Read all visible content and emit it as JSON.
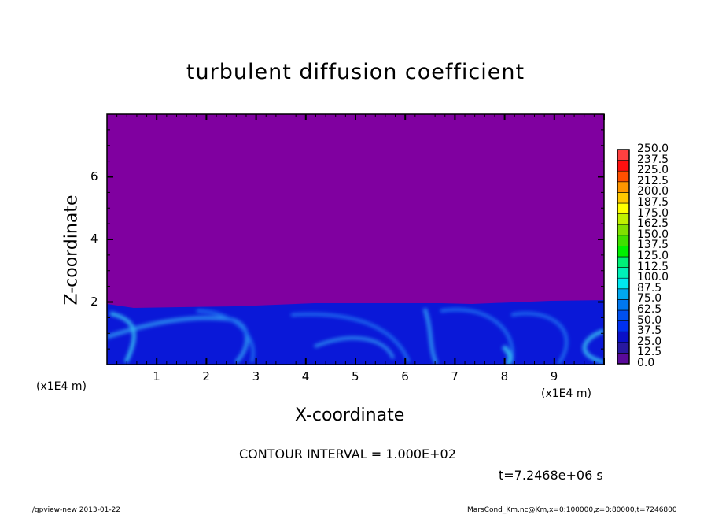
{
  "chart_data": {
    "type": "heatmap",
    "title": "turbulent diffusion coefficient",
    "xlabel": "X-coordinate",
    "ylabel": "Z-coordinate",
    "x_unit_label": "(x1E4 m)",
    "xlim": [
      0,
      10
    ],
    "ylim": [
      0,
      8
    ],
    "x_ticks": [
      "1",
      "2",
      "3",
      "4",
      "5",
      "6",
      "7",
      "8",
      "9"
    ],
    "y_ticks": [
      "2",
      "4",
      "6"
    ],
    "contour_interval_text": "CONTOUR INTERVAL = 1.000E+02",
    "time_text": "t=7.2468e+06 s",
    "colorbar": {
      "levels": [
        "0.0",
        "12.5",
        "25.0",
        "37.5",
        "50.0",
        "62.5",
        "75.0",
        "87.5",
        "100.0",
        "112.5",
        "125.0",
        "137.5",
        "150.0",
        "162.5",
        "175.0",
        "187.5",
        "200.0",
        "212.5",
        "225.0",
        "237.5",
        "250.0"
      ],
      "colors": [
        "#5a0a9a",
        "#2818a0",
        "#0a10c8",
        "#0030f0",
        "#0050f0",
        "#0078f0",
        "#00a8f0",
        "#00e8f0",
        "#00f0b8",
        "#00f078",
        "#00f000",
        "#40e000",
        "#80e000",
        "#c0f000",
        "#ffff00",
        "#ffc800",
        "#ff9600",
        "#ff5000",
        "#ff1010",
        "#ff4040"
      ]
    },
    "field_description_values": {
      "upper_region_level": "0.0",
      "boundary_layer_top_z": 2,
      "boundary_layer_max_level": "87.5"
    }
  },
  "footer": {
    "left": "./gpview-new  2013-01-22",
    "right": "MarsCond_Km.nc@Km,x=0:100000,z=0:80000,t=7246800"
  },
  "colors": {
    "background_field": "#8000a0",
    "boundary_layer": "#0a18d8",
    "swirl": "#2a8cf0"
  }
}
